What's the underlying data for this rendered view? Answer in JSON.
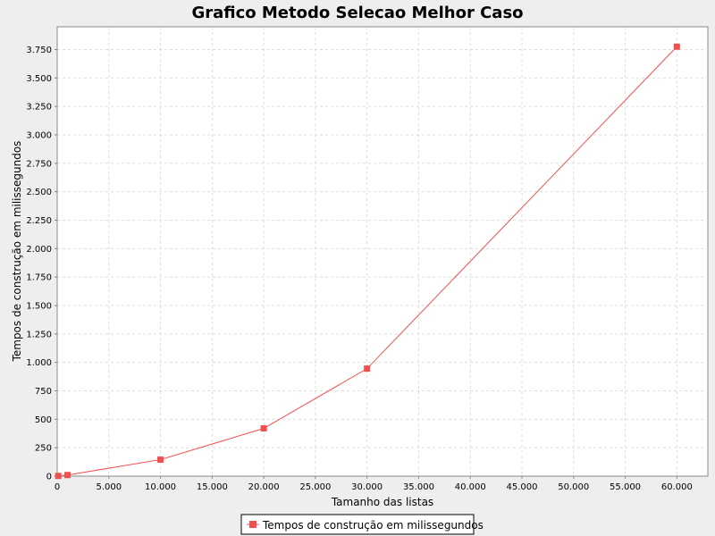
{
  "chart_data": {
    "type": "line",
    "title": "Grafico Metodo Selecao Melhor Caso",
    "xlabel": "Tamanho das listas",
    "ylabel": "Tempos de construção em milissegundos",
    "xlim": [
      0,
      63000
    ],
    "ylim": [
      0,
      3950
    ],
    "x_ticks": [
      0,
      5000,
      10000,
      15000,
      20000,
      25000,
      30000,
      35000,
      40000,
      45000,
      50000,
      55000,
      60000
    ],
    "x_tick_labels": [
      "0",
      "5.000",
      "10.000",
      "15.000",
      "20.000",
      "25.000",
      "30.000",
      "35.000",
      "40.000",
      "45.000",
      "50.000",
      "55.000",
      "60.000"
    ],
    "y_ticks": [
      0,
      250,
      500,
      750,
      1000,
      1250,
      1500,
      1750,
      2000,
      2250,
      2500,
      2750,
      3000,
      3250,
      3500,
      3750
    ],
    "y_tick_labels": [
      "0",
      "250",
      "500",
      "750",
      "1.000",
      "1.250",
      "1.500",
      "1.750",
      "2.000",
      "2.250",
      "2.500",
      "2.750",
      "3.000",
      "3.250",
      "3.500",
      "3.750"
    ],
    "grid": true,
    "legend_position": "bottom-center",
    "series": [
      {
        "name": "Tempos de construção em milissegundos",
        "color": "#f05050",
        "x": [
          100,
          1000,
          10000,
          20000,
          30000,
          60000
        ],
        "y": [
          2,
          10,
          145,
          420,
          945,
          3775
        ]
      }
    ]
  }
}
